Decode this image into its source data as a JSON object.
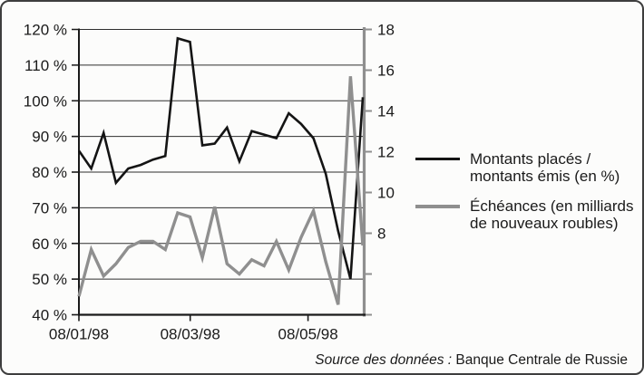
{
  "chart_data": {
    "type": "line",
    "title": "",
    "grid": true,
    "legend_position": "right",
    "x_axis": {
      "tick_labels": [
        {
          "label": "08/01/98",
          "pos": 0
        },
        {
          "label": "08/03/98",
          "pos": 0.392
        },
        {
          "label": "08/05/98",
          "pos": 0.807
        }
      ]
    },
    "left_axis": {
      "min": 40,
      "max": 120,
      "step": 10,
      "tick_labels": [
        "40 %",
        "50 %",
        "60 %",
        "70 %",
        "80 %",
        "90 %",
        "100 %",
        "110 %",
        "120 %"
      ]
    },
    "right_axis": {
      "min": 4,
      "max": 18,
      "step": 2,
      "label_min": 8,
      "tick_labels": [
        "8",
        "10",
        "12",
        "14",
        "16",
        "18"
      ]
    },
    "series": [
      {
        "name": "Montants placés / montants émis (en %)",
        "axis": "left",
        "color": "#141414",
        "width": 2.6,
        "values": [
          86,
          81,
          91,
          77,
          81,
          82,
          83.5,
          84.5,
          117.5,
          116.5,
          87.5,
          88,
          92.5,
          83,
          91.5,
          90.5,
          89.5,
          96.5,
          93.5,
          89.5,
          79.5,
          63.5,
          50,
          101
        ]
      },
      {
        "name": "Échéances (en milliards de nouveaux roubles)",
        "axis": "right",
        "color": "#8f8f8f",
        "width": 3.4,
        "values": [
          4.9,
          7.2,
          5.9,
          6.5,
          7.3,
          7.6,
          7.6,
          7.2,
          9,
          8.8,
          6.8,
          9.3,
          6.5,
          6,
          6.7,
          6.4,
          7.6,
          6.2,
          7.8,
          9.1,
          6.6,
          4.5,
          15.7,
          7.4
        ]
      }
    ]
  },
  "legend": {
    "items": [
      {
        "lines": [
          "Montants placés /",
          "montants émis (en %)"
        ],
        "color": "#141414"
      },
      {
        "lines": [
          "Échéances (en milliards",
          "de nouveaux roubles)"
        ],
        "color": "#8f8f8f"
      }
    ]
  },
  "source": {
    "label_italic": "Source des données :",
    "text": "Banque Centrale de Russie"
  }
}
